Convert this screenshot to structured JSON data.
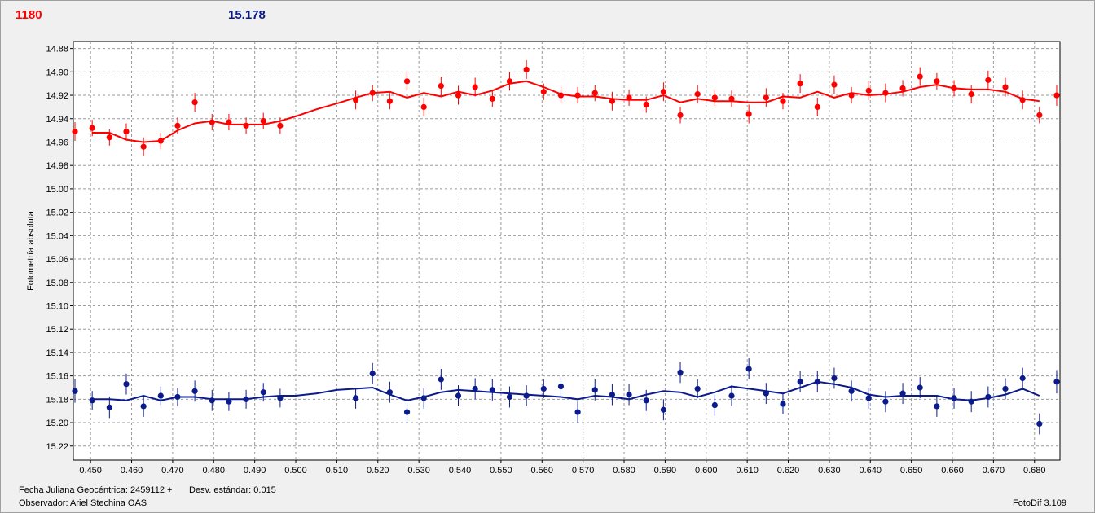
{
  "header": {
    "red_value": "1180",
    "blue_value": "15.178",
    "red_color": "#ff0000",
    "blue_color": "#0b1b8c"
  },
  "footer": {
    "jd_label": "Fecha Juliana Geocéntrica: 2459112 +",
    "std_label": "Desv. estándar: 0.015",
    "observer_label": "Observador: Ariel Stechina OAS",
    "software": "FotoDif 3.109"
  },
  "chart_data": {
    "type": "scatter",
    "ylabel": "Fotometría absoluta",
    "xlim": [
      0.4458,
      0.6862
    ],
    "ylim": [
      14.874,
      15.232
    ],
    "y_inverted": true,
    "grid": true,
    "x_ticks": [
      "0.450",
      "0.460",
      "0.470",
      "0.480",
      "0.490",
      "0.500",
      "0.510",
      "0.520",
      "0.530",
      "0.540",
      "0.550",
      "0.560",
      "0.570",
      "0.580",
      "0.590",
      "0.600",
      "0.610",
      "0.620",
      "0.630",
      "0.640",
      "0.650",
      "0.660",
      "0.670",
      "0.680"
    ],
    "y_ticks": [
      "14.88",
      "14.90",
      "14.92",
      "14.94",
      "14.96",
      "14.98",
      "15.00",
      "15.02",
      "15.04",
      "15.06",
      "15.08",
      "15.10",
      "15.12",
      "15.14",
      "15.16",
      "15.18",
      "15.20",
      "15.22"
    ],
    "series": [
      {
        "color": "#ff0000",
        "x": [
          0.4462,
          0.4504,
          0.4546,
          0.4587,
          0.4629,
          0.4671,
          0.4712,
          0.4754,
          0.4796,
          0.4837,
          0.4879,
          0.4921,
          0.4962,
          0.5146,
          0.5187,
          0.5229,
          0.5271,
          0.5312,
          0.5354,
          0.5396,
          0.5437,
          0.5479,
          0.5521,
          0.5562,
          0.5604,
          0.5646,
          0.5687,
          0.5729,
          0.5771,
          0.5812,
          0.5854,
          0.5896,
          0.5937,
          0.5979,
          0.6021,
          0.6062,
          0.6104,
          0.6146,
          0.6187,
          0.6229,
          0.6271,
          0.6312,
          0.6354,
          0.6396,
          0.6437,
          0.6479,
          0.6521,
          0.6562,
          0.6604,
          0.6646,
          0.6687,
          0.6729,
          0.6771,
          0.6812,
          0.6854
        ],
        "y": [
          14.951,
          14.948,
          14.956,
          14.951,
          14.964,
          14.959,
          14.946,
          14.926,
          14.943,
          14.943,
          14.946,
          14.942,
          14.946,
          14.924,
          14.918,
          14.925,
          14.908,
          14.93,
          14.912,
          14.92,
          14.913,
          14.923,
          14.908,
          14.898,
          14.917,
          14.92,
          14.92,
          14.918,
          14.925,
          14.922,
          14.928,
          14.917,
          14.937,
          14.919,
          14.922,
          14.923,
          14.936,
          14.922,
          14.925,
          14.91,
          14.93,
          14.911,
          14.92,
          14.916,
          14.918,
          14.914,
          14.904,
          14.908,
          14.914,
          14.919,
          14.907,
          14.913,
          14.924,
          14.937,
          14.92
        ],
        "err": [
          0.008,
          0.007,
          0.007,
          0.007,
          0.008,
          0.007,
          0.007,
          0.008,
          0.007,
          0.007,
          0.007,
          0.007,
          0.007,
          0.008,
          0.007,
          0.007,
          0.008,
          0.008,
          0.008,
          0.008,
          0.008,
          0.007,
          0.008,
          0.008,
          0.007,
          0.007,
          0.007,
          0.007,
          0.008,
          0.007,
          0.007,
          0.008,
          0.007,
          0.008,
          0.007,
          0.007,
          0.008,
          0.008,
          0.007,
          0.008,
          0.008,
          0.008,
          0.007,
          0.008,
          0.008,
          0.007,
          0.008,
          0.007,
          0.007,
          0.008,
          0.008,
          0.008,
          0.008,
          0.007,
          0.009
        ],
        "fit_x": [
          0.4504,
          0.4546,
          0.4587,
          0.4629,
          0.4671,
          0.4712,
          0.4754,
          0.4796,
          0.4837,
          0.4879,
          0.4921,
          0.4962,
          0.5,
          0.505,
          0.51,
          0.5146,
          0.5187,
          0.5229,
          0.5271,
          0.5312,
          0.5354,
          0.5396,
          0.5437,
          0.5479,
          0.5521,
          0.5562,
          0.5604,
          0.5646,
          0.5687,
          0.5729,
          0.5771,
          0.5812,
          0.5854,
          0.5896,
          0.5937,
          0.5979,
          0.6021,
          0.6062,
          0.6104,
          0.6146,
          0.6187,
          0.6229,
          0.6271,
          0.6312,
          0.6354,
          0.6396,
          0.6437,
          0.6479,
          0.6521,
          0.6562,
          0.6604,
          0.6646,
          0.6687,
          0.6729,
          0.6771,
          0.6812
        ],
        "fit_y": [
          14.952,
          14.952,
          14.958,
          14.96,
          14.959,
          14.95,
          14.944,
          14.942,
          14.945,
          14.945,
          14.945,
          14.942,
          14.938,
          14.932,
          14.927,
          14.922,
          14.918,
          14.917,
          14.922,
          14.918,
          14.921,
          14.917,
          14.92,
          14.916,
          14.91,
          14.908,
          14.913,
          14.919,
          14.921,
          14.921,
          14.923,
          14.924,
          14.924,
          14.92,
          14.926,
          14.923,
          14.925,
          14.925,
          14.926,
          14.926,
          14.921,
          14.922,
          14.917,
          14.922,
          14.918,
          14.92,
          14.919,
          14.917,
          14.913,
          14.911,
          14.914,
          14.915,
          14.915,
          14.917,
          14.923,
          14.925
        ]
      },
      {
        "color": "#0b1b8c",
        "x": [
          0.4462,
          0.4504,
          0.4546,
          0.4587,
          0.4629,
          0.4671,
          0.4712,
          0.4754,
          0.4796,
          0.4837,
          0.4879,
          0.4921,
          0.4962,
          0.5146,
          0.5187,
          0.5229,
          0.5271,
          0.5312,
          0.5354,
          0.5396,
          0.5437,
          0.5479,
          0.5521,
          0.5562,
          0.5604,
          0.5646,
          0.5687,
          0.5729,
          0.5771,
          0.5812,
          0.5854,
          0.5896,
          0.5937,
          0.5979,
          0.6021,
          0.6062,
          0.6104,
          0.6146,
          0.6187,
          0.6229,
          0.6271,
          0.6312,
          0.6354,
          0.6396,
          0.6437,
          0.6479,
          0.6521,
          0.6562,
          0.6604,
          0.6646,
          0.6687,
          0.6729,
          0.6771,
          0.6812,
          0.6854
        ],
        "y": [
          15.173,
          15.181,
          15.187,
          15.167,
          15.186,
          15.177,
          15.178,
          15.173,
          15.181,
          15.182,
          15.18,
          15.174,
          15.179,
          15.179,
          15.158,
          15.174,
          15.191,
          15.179,
          15.163,
          15.177,
          15.171,
          15.172,
          15.178,
          15.177,
          15.171,
          15.169,
          15.191,
          15.172,
          15.176,
          15.176,
          15.181,
          15.189,
          15.157,
          15.171,
          15.185,
          15.177,
          15.154,
          15.175,
          15.184,
          15.165,
          15.165,
          15.162,
          15.173,
          15.179,
          15.182,
          15.175,
          15.17,
          15.186,
          15.179,
          15.182,
          15.178,
          15.171,
          15.162,
          15.201,
          15.165
        ],
        "err": [
          0.01,
          0.008,
          0.009,
          0.009,
          0.009,
          0.008,
          0.008,
          0.009,
          0.009,
          0.008,
          0.008,
          0.008,
          0.008,
          0.009,
          0.009,
          0.009,
          0.009,
          0.009,
          0.009,
          0.009,
          0.009,
          0.009,
          0.009,
          0.009,
          0.008,
          0.008,
          0.009,
          0.009,
          0.009,
          0.009,
          0.009,
          0.009,
          0.009,
          0.008,
          0.009,
          0.009,
          0.009,
          0.009,
          0.009,
          0.009,
          0.009,
          0.009,
          0.009,
          0.009,
          0.009,
          0.009,
          0.009,
          0.009,
          0.009,
          0.009,
          0.009,
          0.009,
          0.009,
          0.009,
          0.01
        ],
        "fit_x": [
          0.4504,
          0.4546,
          0.4587,
          0.4629,
          0.4671,
          0.4712,
          0.4754,
          0.4796,
          0.4837,
          0.4879,
          0.4921,
          0.4962,
          0.5,
          0.505,
          0.51,
          0.5146,
          0.5187,
          0.5229,
          0.5271,
          0.5312,
          0.5354,
          0.5396,
          0.5437,
          0.5479,
          0.5521,
          0.5562,
          0.5604,
          0.5646,
          0.5687,
          0.5729,
          0.5771,
          0.5812,
          0.5854,
          0.5896,
          0.5937,
          0.5979,
          0.6021,
          0.6062,
          0.6104,
          0.6146,
          0.6187,
          0.6229,
          0.6271,
          0.6312,
          0.6354,
          0.6396,
          0.6437,
          0.6479,
          0.6521,
          0.6562,
          0.6604,
          0.6646,
          0.6687,
          0.6729,
          0.6771,
          0.6812
        ],
        "fit_y": [
          15.18,
          15.18,
          15.181,
          15.177,
          15.181,
          15.178,
          15.178,
          15.18,
          15.18,
          15.18,
          15.178,
          15.177,
          15.177,
          15.175,
          15.172,
          15.171,
          15.17,
          15.176,
          15.181,
          15.178,
          15.174,
          15.172,
          15.173,
          15.174,
          15.175,
          15.176,
          15.177,
          15.178,
          15.18,
          15.177,
          15.178,
          15.18,
          15.176,
          15.173,
          15.174,
          15.178,
          15.174,
          15.169,
          15.171,
          15.173,
          15.175,
          15.17,
          15.165,
          15.167,
          15.17,
          15.176,
          15.178,
          15.177,
          15.177,
          15.177,
          15.18,
          15.181,
          15.179,
          15.176,
          15.171,
          15.177
        ]
      }
    ]
  }
}
